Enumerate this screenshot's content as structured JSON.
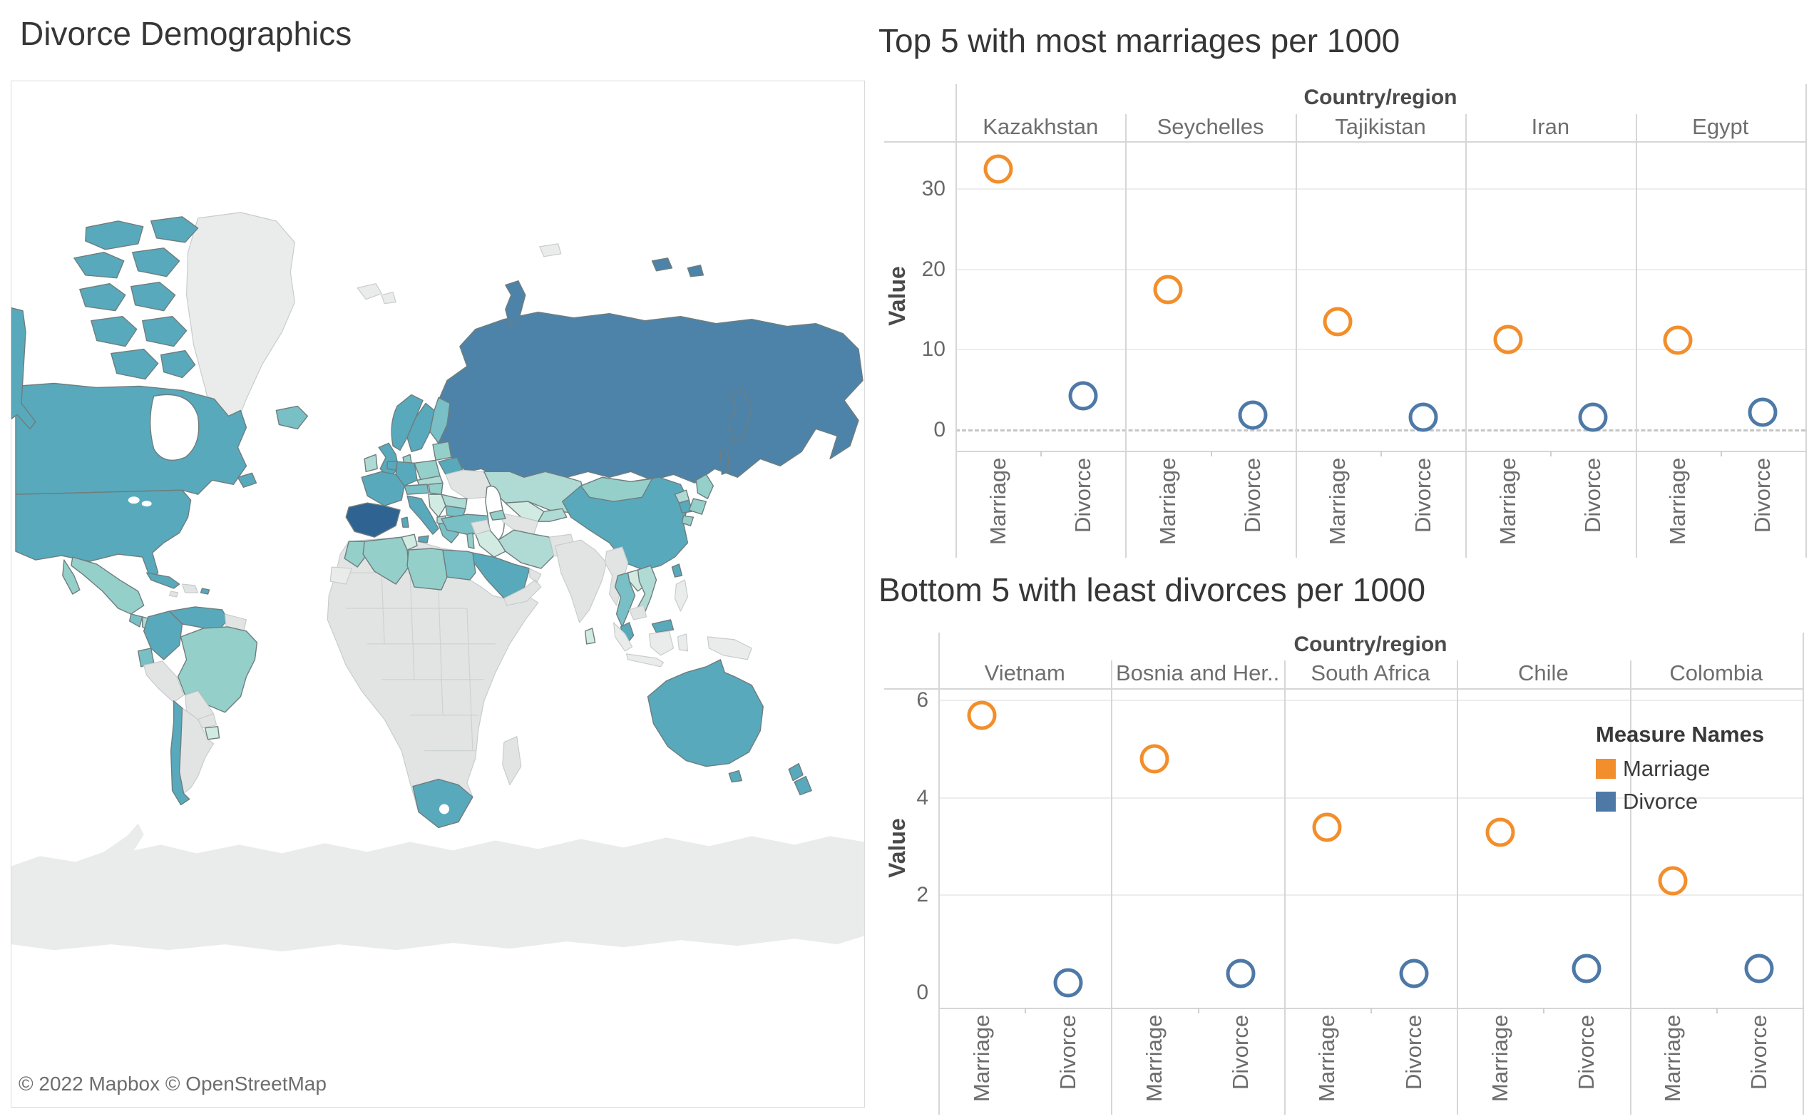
{
  "map": {
    "title": "Divorce Demographics",
    "attribution": "© 2022 Mapbox © OpenStreetMap",
    "palette": {
      "sea": "#ffffff",
      "no_data": "#e2e4e4",
      "no_data_light": "#eaeceb",
      "teal_0": "#d2ebe2",
      "teal_1": "#b0dad4",
      "teal_2": "#94cfca",
      "teal_3": "#79bfc6",
      "teal_4": "#58a9bc",
      "teal_5": "#4d83a8",
      "teal_6": "#2f6391",
      "white": "#ffffff"
    }
  },
  "legend": {
    "title": "Measure Names",
    "items": [
      {
        "label": "Marriage",
        "color": "#f28e2b"
      },
      {
        "label": "Divorce",
        "color": "#4e79a7"
      }
    ]
  },
  "chart_data": [
    {
      "type": "scatter",
      "title": "Top 5 with most marriages per 1000",
      "facet_label": "Country/region",
      "ylabel": "Value",
      "yticks": [
        0,
        10,
        20,
        30
      ],
      "ylim": [
        -2.6,
        36.2
      ],
      "grid": true,
      "zero_line_dashed": true,
      "legend_position": "none",
      "categories": [
        "Marriage",
        "Divorce"
      ],
      "series": [
        {
          "name": "Marriage",
          "color": "#f28e2b",
          "values": [
            32.5,
            17.5,
            13.5,
            11.3,
            11.2
          ]
        },
        {
          "name": "Divorce",
          "color": "#4e79a7",
          "values": [
            4.3,
            1.9,
            1.6,
            1.6,
            2.2
          ]
        }
      ],
      "panels": [
        "Kazakhstan",
        "Seychelles",
        "Tajikistan",
        "Iran",
        "Egypt"
      ]
    },
    {
      "type": "scatter",
      "title": "Bottom 5 with least divorces per 1000",
      "facet_label": "Country/region",
      "ylabel": "Value",
      "yticks": [
        0,
        2,
        4,
        6
      ],
      "ylim": [
        -0.31,
        6.25
      ],
      "grid": true,
      "zero_line_dashed": false,
      "legend_position": "inside-right",
      "categories": [
        "Marriage",
        "Divorce"
      ],
      "series": [
        {
          "name": "Marriage",
          "color": "#f28e2b",
          "values": [
            5.7,
            4.8,
            3.4,
            3.3,
            2.3
          ]
        },
        {
          "name": "Divorce",
          "color": "#4e79a7",
          "values": [
            0.2,
            0.4,
            0.4,
            0.5,
            0.5
          ]
        }
      ],
      "panels": [
        "Vietnam",
        "Bosnia and Her..",
        "South Africa",
        "Chile",
        "Colombia"
      ]
    }
  ]
}
